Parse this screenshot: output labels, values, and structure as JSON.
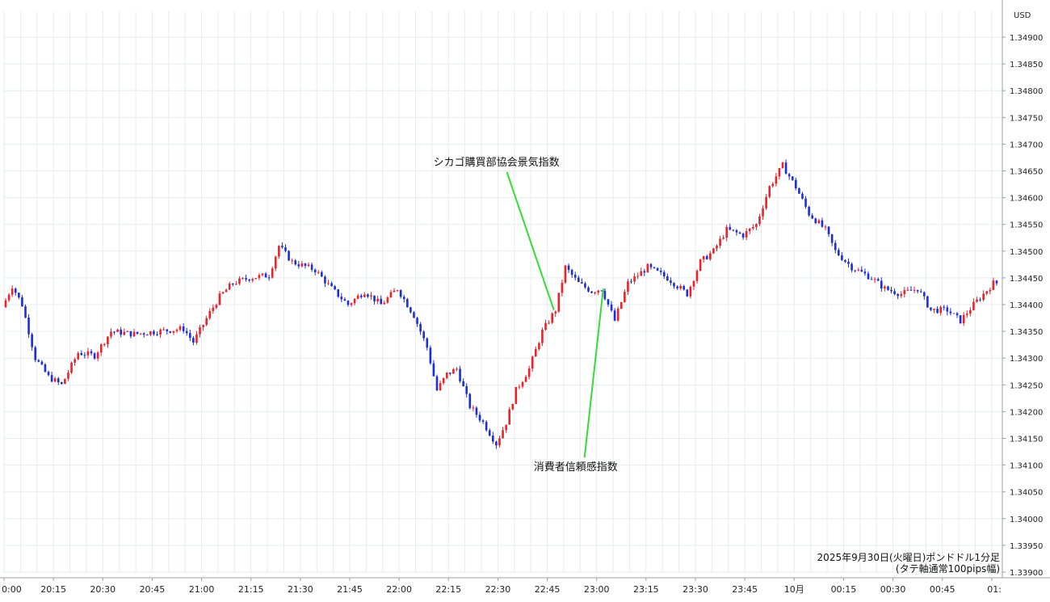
{
  "chart_data": {
    "type": "candlestick",
    "title": "",
    "currency_label": "USD",
    "caption_line1": "2025年9月30日(火曜日)ポンドドル1分足",
    "caption_line2": "(タテ軸通常100pips幅)",
    "ylim": [
      1.339,
      1.3492
    ],
    "y_ticks": [
      1.349,
      1.3485,
      1.348,
      1.3475,
      1.347,
      1.3465,
      1.346,
      1.3455,
      1.345,
      1.3445,
      1.344,
      1.3435,
      1.343,
      1.3425,
      1.342,
      1.3415,
      1.341,
      1.3405,
      1.34,
      1.3395,
      1.339
    ],
    "y_tick_labels": [
      "1.34900",
      "1.34850",
      "1.34800",
      "1.34750",
      "1.34700",
      "1.34650",
      "1.34600",
      "1.34550",
      "1.34500",
      "1.34450",
      "1.34400",
      "1.34350",
      "1.34300",
      "1.34250",
      "1.34200",
      "1.34150",
      "1.34100",
      "1.34050",
      "1.34000",
      "1.33950",
      "1.33900"
    ],
    "x_tick_labels": [
      "0:00",
      "20:15",
      "20:30",
      "20:45",
      "21:00",
      "21:15",
      "21:30",
      "21:45",
      "22:00",
      "22:15",
      "22:30",
      "22:45",
      "23:00",
      "23:15",
      "23:30",
      "23:45",
      "10月",
      "00:15",
      "00:30",
      "00:45",
      "01:"
    ],
    "x_tick_minutes": [
      0,
      15,
      30,
      45,
      60,
      75,
      90,
      105,
      120,
      135,
      150,
      165,
      180,
      195,
      210,
      225,
      240,
      255,
      270,
      285,
      300
    ],
    "x_range_minutes": [
      0,
      302
    ],
    "up_color": "#e8232a",
    "down_color": "#1c2fd6",
    "annotation_color": "#33dd33",
    "anchors": [
      {
        "m": 0,
        "p": 1.34395
      },
      {
        "m": 3,
        "p": 1.34435
      },
      {
        "m": 6,
        "p": 1.344
      },
      {
        "m": 10,
        "p": 1.343
      },
      {
        "m": 14,
        "p": 1.34265
      },
      {
        "m": 18,
        "p": 1.3425
      },
      {
        "m": 23,
        "p": 1.3431
      },
      {
        "m": 28,
        "p": 1.34305
      },
      {
        "m": 33,
        "p": 1.3435
      },
      {
        "m": 40,
        "p": 1.34345
      },
      {
        "m": 47,
        "p": 1.3435
      },
      {
        "m": 55,
        "p": 1.34355
      },
      {
        "m": 58,
        "p": 1.3433
      },
      {
        "m": 63,
        "p": 1.34385
      },
      {
        "m": 66,
        "p": 1.34415
      },
      {
        "m": 70,
        "p": 1.3444
      },
      {
        "m": 75,
        "p": 1.3445
      },
      {
        "m": 81,
        "p": 1.34455
      },
      {
        "m": 84,
        "p": 1.3451
      },
      {
        "m": 88,
        "p": 1.3448
      },
      {
        "m": 95,
        "p": 1.34465
      },
      {
        "m": 100,
        "p": 1.3443
      },
      {
        "m": 105,
        "p": 1.344
      },
      {
        "m": 110,
        "p": 1.34425
      },
      {
        "m": 115,
        "p": 1.344
      },
      {
        "m": 120,
        "p": 1.3443
      },
      {
        "m": 125,
        "p": 1.3438
      },
      {
        "m": 129,
        "p": 1.3432
      },
      {
        "m": 132,
        "p": 1.3424
      },
      {
        "m": 135,
        "p": 1.3427
      },
      {
        "m": 138,
        "p": 1.3428
      },
      {
        "m": 142,
        "p": 1.3421
      },
      {
        "m": 146,
        "p": 1.3418
      },
      {
        "m": 150,
        "p": 1.3414
      },
      {
        "m": 153,
        "p": 1.3418
      },
      {
        "m": 156,
        "p": 1.3424
      },
      {
        "m": 160,
        "p": 1.3428
      },
      {
        "m": 164,
        "p": 1.3435
      },
      {
        "m": 168,
        "p": 1.3439
      },
      {
        "m": 171,
        "p": 1.3447
      },
      {
        "m": 175,
        "p": 1.3444
      },
      {
        "m": 179,
        "p": 1.34425
      },
      {
        "m": 182,
        "p": 1.3443
      },
      {
        "m": 186,
        "p": 1.3437
      },
      {
        "m": 190,
        "p": 1.3444
      },
      {
        "m": 196,
        "p": 1.3447
      },
      {
        "m": 202,
        "p": 1.3445
      },
      {
        "m": 208,
        "p": 1.3442
      },
      {
        "m": 212,
        "p": 1.3448
      },
      {
        "m": 216,
        "p": 1.345
      },
      {
        "m": 220,
        "p": 1.3454
      },
      {
        "m": 225,
        "p": 1.3453
      },
      {
        "m": 229,
        "p": 1.3455
      },
      {
        "m": 233,
        "p": 1.3462
      },
      {
        "m": 237,
        "p": 1.3466
      },
      {
        "m": 241,
        "p": 1.3462
      },
      {
        "m": 245,
        "p": 1.3457
      },
      {
        "m": 250,
        "p": 1.3454
      },
      {
        "m": 253,
        "p": 1.345
      },
      {
        "m": 258,
        "p": 1.3447
      },
      {
        "m": 264,
        "p": 1.3445
      },
      {
        "m": 268,
        "p": 1.3443
      },
      {
        "m": 273,
        "p": 1.3442
      },
      {
        "m": 278,
        "p": 1.3443
      },
      {
        "m": 282,
        "p": 1.3439
      },
      {
        "m": 287,
        "p": 1.3439
      },
      {
        "m": 291,
        "p": 1.3437
      },
      {
        "m": 295,
        "p": 1.344
      },
      {
        "m": 301,
        "p": 1.3444
      }
    ],
    "annotations": [
      {
        "text": "シカゴ購買部協会景気指数",
        "event_minute": 167,
        "event_price": 1.3439,
        "label_minute": 152,
        "label_price": 1.3466
      },
      {
        "text": "消費者信頼感指数",
        "event_minute": 182,
        "event_price": 1.3443,
        "label_minute": 180,
        "label_price": 1.3409
      }
    ]
  }
}
